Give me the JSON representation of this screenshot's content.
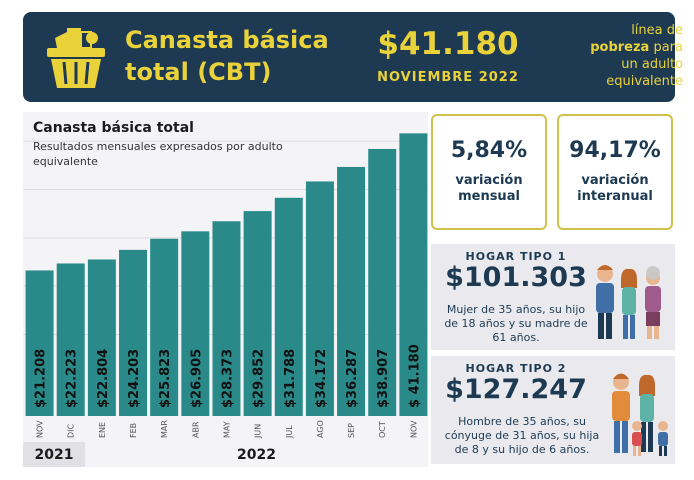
{
  "header": {
    "title_line1": "Canasta básica",
    "title_line2": "total (CBT)",
    "amount": "$41.180",
    "date": "NOVIEMBRE 2022",
    "note_line1": "línea de",
    "note_bold": "pobreza",
    "note_after_bold": " para",
    "note_line3": "un adulto",
    "note_line4": "equivalente"
  },
  "chart_data": {
    "type": "bar",
    "title": "Canasta básica total",
    "subtitle": "Resultados mensuales expresados por adulto equivalente",
    "categories": [
      "NOV",
      "DIC",
      "ENE",
      "FEB",
      "MAR",
      "ABR",
      "MAY",
      "JUN",
      "JUL",
      "AGO",
      "SEP",
      "OCT",
      "NOV"
    ],
    "values": [
      21208,
      22223,
      22804,
      24203,
      25823,
      26905,
      28373,
      29852,
      31788,
      34172,
      36287,
      38907,
      41180
    ],
    "labels": [
      "$21.208",
      "$22.223",
      "$22.804",
      "$24.203",
      "$25.823",
      "$26.905",
      "$28.373",
      "$29.852",
      "$31.788",
      "$34.172",
      "$36.287",
      "$38.907",
      "$ 41.180"
    ],
    "years": [
      "2021",
      "2022"
    ],
    "bar_color": "#2a8a8a",
    "ylim": [
      0,
      44000
    ]
  },
  "stats": [
    {
      "value": "5,84%",
      "label_line1": "variación",
      "label_line2": "mensual"
    },
    {
      "value": "94,17%",
      "label_line1": "variación",
      "label_line2": "interanual"
    }
  ],
  "hogar1": {
    "heading": "HOGAR TIPO 1",
    "amount": "$101.303",
    "desc_line1": "Mujer de 35 años, su hijo",
    "desc_line2": "de 18 años y su madre de",
    "desc_line3": "61 años."
  },
  "hogar2": {
    "heading": "HOGAR TIPO 2",
    "amount": "$127.247",
    "desc_line1": "Hombre de 35 años, su",
    "desc_line2": "cónyuge de 31 años, su hija",
    "desc_line3": "de 8 y su hijo de 6 años."
  },
  "colors": {
    "navy": "#1d3a52",
    "gold": "#e9d23a",
    "teal": "#2a8a8a"
  }
}
